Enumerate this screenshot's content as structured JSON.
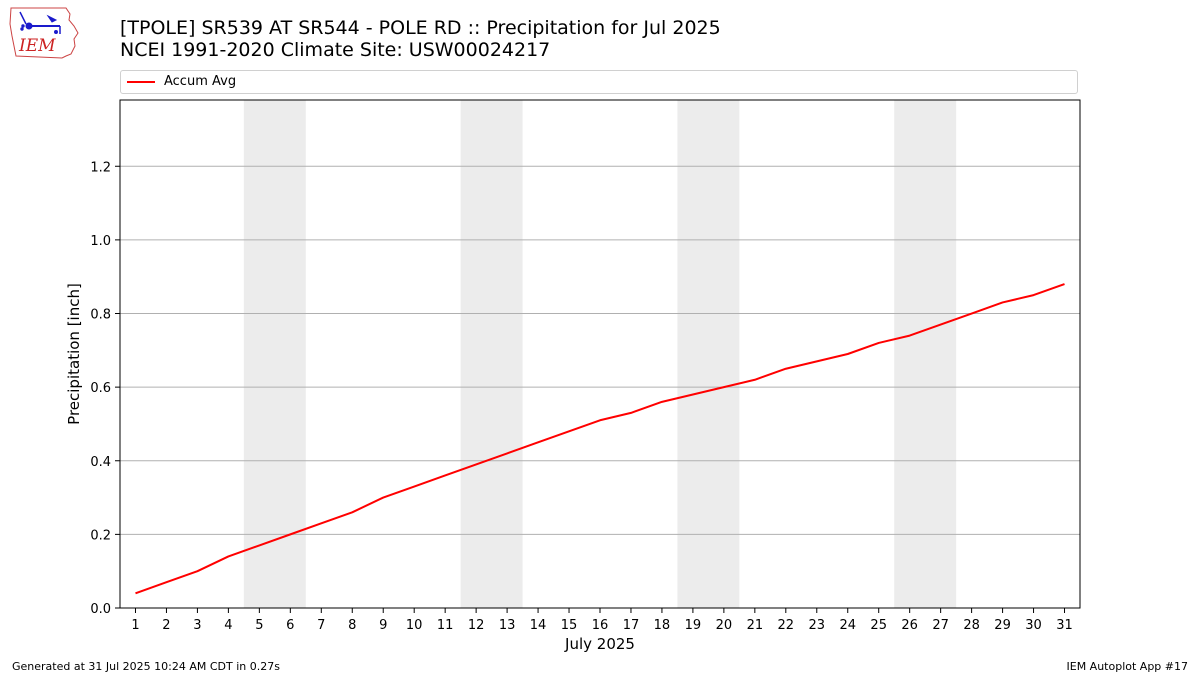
{
  "header": {
    "title_line1": "[TPOLE] SR539 AT SR544 - POLE RD :: Precipitation for Jul 2025",
    "title_line2": "NCEI 1991-2020 Climate Site: USW00024217"
  },
  "logo": {
    "text": "IEM",
    "icon": "iem-iowa-logo"
  },
  "legend": {
    "items": [
      {
        "label": "Accum Avg",
        "color": "#ff0000"
      }
    ]
  },
  "footer": {
    "left": "Generated at 31 Jul 2025 10:24 AM CDT in 0.27s",
    "right": "IEM Autoplot App #17"
  },
  "colors": {
    "series": "#ff0000",
    "weekend_band": "#ececec",
    "grid": "#b0b0b0"
  },
  "chart_data": {
    "type": "line",
    "xlabel": "July 2025",
    "ylabel": "Precipitation [inch]",
    "x": [
      1,
      2,
      3,
      4,
      5,
      6,
      7,
      8,
      9,
      10,
      11,
      12,
      13,
      14,
      15,
      16,
      17,
      18,
      19,
      20,
      21,
      22,
      23,
      24,
      25,
      26,
      27,
      28,
      29,
      30,
      31
    ],
    "series": [
      {
        "name": "Accum Avg",
        "values": [
          0.04,
          0.07,
          0.1,
          0.14,
          0.17,
          0.2,
          0.23,
          0.26,
          0.3,
          0.33,
          0.36,
          0.39,
          0.42,
          0.45,
          0.48,
          0.51,
          0.53,
          0.56,
          0.58,
          0.6,
          0.62,
          0.65,
          0.67,
          0.69,
          0.72,
          0.74,
          0.77,
          0.8,
          0.83,
          0.85,
          0.88
        ]
      }
    ],
    "weekend_bands": [
      [
        5,
        6
      ],
      [
        12,
        13
      ],
      [
        19,
        20
      ],
      [
        26,
        27
      ]
    ],
    "xlim": [
      0.5,
      31.5
    ],
    "ylim": [
      0,
      1.38
    ],
    "yticks": [
      0.0,
      0.2,
      0.4,
      0.6,
      0.8,
      1.0,
      1.2
    ],
    "ytick_labels": [
      "0.0",
      "0.2",
      "0.4",
      "0.6",
      "0.8",
      "1.0",
      "1.2"
    ],
    "grid": "horizontal",
    "legend": "top"
  }
}
